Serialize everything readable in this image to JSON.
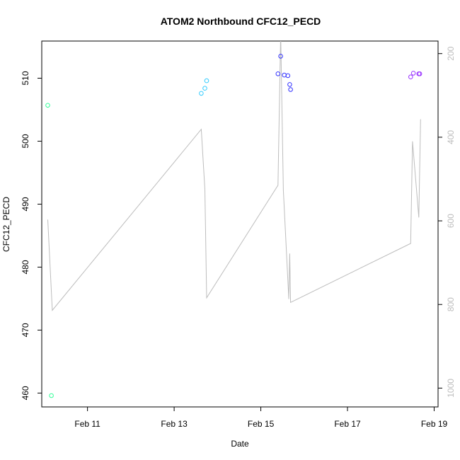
{
  "chart_data": {
    "type": "scatter",
    "title": "ATOM2 Northbound CFC12_PECD",
    "xlabel": "Date",
    "ylabel": "CFC12_PECD",
    "xlim": [
      "2016-02-09 22:40",
      "2016-02-19 02:10"
    ],
    "ylim": [
      457.8,
      515.9
    ],
    "x_ticks": [
      {
        "label": "Feb 11",
        "x": "2016-02-11 00:00"
      },
      {
        "label": "Feb 13",
        "x": "2016-02-13 00:00"
      },
      {
        "label": "Feb 15",
        "x": "2016-02-15 00:00"
      },
      {
        "label": "Feb 17",
        "x": "2016-02-17 00:00"
      },
      {
        "label": "Feb 19",
        "x": "2016-02-19 00:00"
      }
    ],
    "y_ticks": [
      460,
      470,
      480,
      490,
      500,
      510
    ],
    "y2_ticks": [
      200,
      400,
      600,
      800,
      1000
    ],
    "y2_range": [
      1045,
      170
    ],
    "y2_reversed": true,
    "grid": false,
    "points": [
      {
        "x": "2016-02-10 02:00",
        "y": 505.7,
        "color": "#33ff99"
      },
      {
        "x": "2016-02-10 04:00",
        "y": 459.6,
        "color": "#33ff99"
      },
      {
        "x": "2016-02-13 15:00",
        "y": 507.6,
        "color": "#33ccff"
      },
      {
        "x": "2016-02-13 17:00",
        "y": 508.4,
        "color": "#33ccff"
      },
      {
        "x": "2016-02-13 18:00",
        "y": 509.6,
        "color": "#33ccff"
      },
      {
        "x": "2016-02-15 09:30",
        "y": 510.7,
        "color": "#3333ff"
      },
      {
        "x": "2016-02-15 11:00",
        "y": 513.5,
        "color": "#3333ff"
      },
      {
        "x": "2016-02-15 13:00",
        "y": 510.5,
        "color": "#3333ff"
      },
      {
        "x": "2016-02-15 15:00",
        "y": 510.4,
        "color": "#3333ff"
      },
      {
        "x": "2016-02-15 16:00",
        "y": 509.0,
        "color": "#3333ff"
      },
      {
        "x": "2016-02-15 16:30",
        "y": 508.2,
        "color": "#3333ff"
      },
      {
        "x": "2016-02-18 11:00",
        "y": 510.2,
        "color": "#9933ff"
      },
      {
        "x": "2016-02-18 12:30",
        "y": 510.8,
        "color": "#9933ff"
      },
      {
        "x": "2016-02-18 15:30",
        "y": 510.7,
        "color": "#9933ff"
      },
      {
        "x": "2016-02-18 16:00",
        "y": 510.7,
        "color": "#9933ff"
      }
    ],
    "secondary_line": {
      "color": "#bdbdbd",
      "points": [
        {
          "x": "2016-02-10 02:00",
          "y2": 597
        },
        {
          "x": "2016-02-10 04:30",
          "y2": 814
        },
        {
          "x": "2016-02-13 15:00",
          "y2": 381
        },
        {
          "x": "2016-02-13 17:00",
          "y2": 524
        },
        {
          "x": "2016-02-13 18:00",
          "y2": 784
        },
        {
          "x": "2016-02-15 09:30",
          "y2": 515
        },
        {
          "x": "2016-02-15 11:00",
          "y2": 152
        },
        {
          "x": "2016-02-15 12:30",
          "y2": 527
        },
        {
          "x": "2016-02-15 15:30",
          "y2": 787
        },
        {
          "x": "2016-02-15 16:00",
          "y2": 678
        },
        {
          "x": "2016-02-15 16:30",
          "y2": 795
        },
        {
          "x": "2016-02-18 11:00",
          "y2": 654
        },
        {
          "x": "2016-02-18 12:00",
          "y2": 410
        },
        {
          "x": "2016-02-18 15:30",
          "y2": 592
        },
        {
          "x": "2016-02-18 16:30",
          "y2": 357
        }
      ]
    }
  }
}
